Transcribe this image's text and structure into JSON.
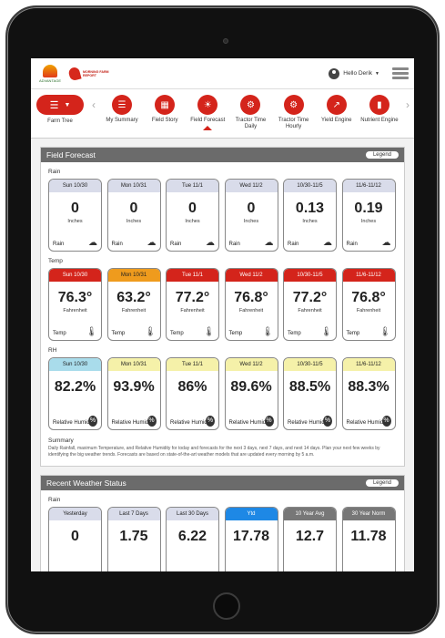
{
  "header": {
    "logo_left": "ADVANTAGE",
    "logo_right": "MORNING FARM REPORT",
    "greeting": "Hello Derik"
  },
  "nav": {
    "farm_tree_label": "Farm Tree",
    "prev_arrow": "‹",
    "next_arrow": "›",
    "items": [
      {
        "label": "My Summary",
        "icon": "summary-icon",
        "glyph": "☰"
      },
      {
        "label": "Field Story",
        "icon": "field-story-icon",
        "glyph": "▦"
      },
      {
        "label": "Field Forecast",
        "icon": "forecast-icon",
        "glyph": "☀"
      },
      {
        "label": "Tractor Time Daily",
        "icon": "tractor-daily-icon",
        "glyph": "⚙"
      },
      {
        "label": "Tractor Time Hourly",
        "icon": "tractor-hourly-icon",
        "glyph": "⚙"
      },
      {
        "label": "Yield Engine",
        "icon": "yield-engine-icon",
        "glyph": "↗"
      },
      {
        "label": "Nutrient Engine",
        "icon": "nutrient-engine-icon",
        "glyph": "▮"
      }
    ],
    "active_item": "Field Forecast"
  },
  "field_forecast": {
    "title": "Field Forecast",
    "legend_label": "Legend",
    "rain": {
      "title": "Rain",
      "cards": [
        {
          "period": "Sun 10/30",
          "value": "0",
          "unit": "Inches",
          "label": "Rain",
          "color": "gray"
        },
        {
          "period": "Mon 10/31",
          "value": "0",
          "unit": "Inches",
          "label": "Rain",
          "color": "gray"
        },
        {
          "period": "Tue 11/1",
          "value": "0",
          "unit": "Inches",
          "label": "Rain",
          "color": "gray"
        },
        {
          "period": "Wed 11/2",
          "value": "0",
          "unit": "Inches",
          "label": "Rain",
          "color": "gray"
        },
        {
          "period": "10/30-11/5",
          "value": "0.13",
          "unit": "Inches",
          "label": "Rain",
          "color": "gray"
        },
        {
          "period": "11/6-11/12",
          "value": "0.19",
          "unit": "Inches",
          "label": "Rain",
          "color": "gray"
        }
      ]
    },
    "temp": {
      "title": "Temp",
      "cards": [
        {
          "period": "Sun 10/30",
          "value": "76.3°",
          "unit": "Fahrenheit",
          "label": "Temp",
          "color": "red"
        },
        {
          "period": "Mon 10/31",
          "value": "63.2°",
          "unit": "Fahrenheit",
          "label": "Temp",
          "color": "orange"
        },
        {
          "period": "Tue 11/1",
          "value": "77.2°",
          "unit": "Fahrenheit",
          "label": "Temp",
          "color": "red"
        },
        {
          "period": "Wed 11/2",
          "value": "76.8°",
          "unit": "Fahrenheit",
          "label": "Temp",
          "color": "red"
        },
        {
          "period": "10/30-11/5",
          "value": "77.2°",
          "unit": "Fahrenheit",
          "label": "Temp",
          "color": "red"
        },
        {
          "period": "11/6-11/12",
          "value": "76.8°",
          "unit": "Fahrenheit",
          "label": "Temp",
          "color": "red"
        }
      ]
    },
    "rh": {
      "title": "RH",
      "cards": [
        {
          "period": "Sun 10/30",
          "value": "82.2%",
          "label": "Relative Humidity",
          "color": "cyan"
        },
        {
          "period": "Mon 10/31",
          "value": "93.9%",
          "label": "Relative Humidity",
          "color": "yellow"
        },
        {
          "period": "Tue 11/1",
          "value": "86%",
          "label": "Relative Humidity",
          "color": "yellow"
        },
        {
          "period": "Wed 11/2",
          "value": "89.6%",
          "label": "Relative Humidity",
          "color": "yellow"
        },
        {
          "period": "10/30-11/5",
          "value": "88.5%",
          "label": "Relative Humidity",
          "color": "yellow"
        },
        {
          "period": "11/6-11/12",
          "value": "88.3%",
          "label": "Relative Humidity",
          "color": "yellow"
        }
      ]
    },
    "summary_title": "Summary",
    "summary_text": "Daily Rainfall, maximum Temperature, and Relative Humidity for today and forecasts for the next 3 days, next 7 days, and next 14 days. Plan your next few weeks by identifying the big weather trends. Forecasts are based on state-of-the-art weather models that are updated every morning by 5 a.m."
  },
  "recent_weather": {
    "title": "Recent Weather Status",
    "legend_label": "Legend",
    "rain": {
      "title": "Rain",
      "cards": [
        {
          "period": "Yesterday",
          "value": "0",
          "color": "gray"
        },
        {
          "period": "Last 7 Days",
          "value": "1.75",
          "color": "gray"
        },
        {
          "period": "Last 30 Days",
          "value": "6.22",
          "color": "gray"
        },
        {
          "period": "Ytd",
          "value": "17.78",
          "color": "blue"
        },
        {
          "period": "10 Year Avg",
          "value": "12.7",
          "color": "dark"
        },
        {
          "period": "30 Year Norm",
          "value": "11.78",
          "color": "dark"
        }
      ]
    }
  },
  "colors": {
    "brand_red": "#d4241b",
    "orange": "#ef9b1d",
    "cyan": "#a9dceb",
    "yellow": "#f5f1a9",
    "gray_header": "#d9dcea",
    "panel_header": "#6b6b6b",
    "blue": "#1e88e5"
  },
  "icons": {
    "rain": "rain-cloud-icon",
    "temp": "thermometer-icon",
    "rh": "humidity-drop-icon",
    "user": "user-icon",
    "menu": "hamburger-menu-icon"
  }
}
